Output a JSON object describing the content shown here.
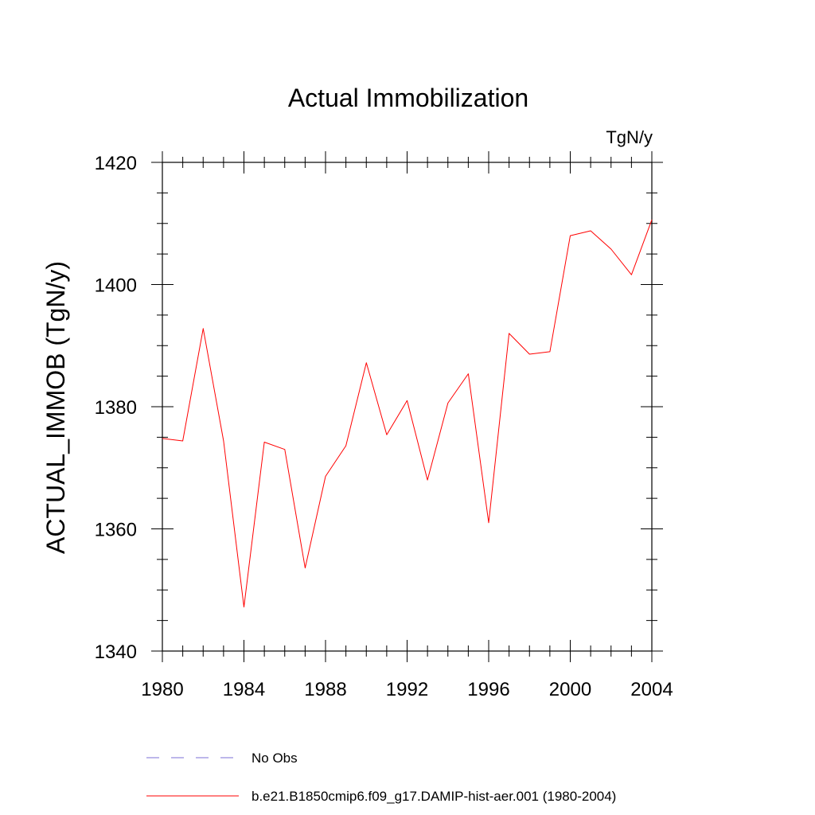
{
  "chart_data": {
    "type": "line",
    "title": "Actual Immobilization",
    "units": "TgN/y",
    "xlabel": "",
    "ylabel": "ACTUAL_IMMOB  (TgN/y)",
    "xlim": [
      1980,
      2004
    ],
    "ylim": [
      1340,
      1420
    ],
    "x_ticks": [
      1980,
      1984,
      1988,
      1992,
      1996,
      2000,
      2004
    ],
    "y_ticks": [
      1340,
      1360,
      1380,
      1400,
      1420
    ],
    "x_minor_step": 1,
    "y_minor_step": 5,
    "grid": false,
    "legend_position": "bottom",
    "legend": [
      {
        "label": "No Obs",
        "color": "#7b6fd6",
        "style": "dashed"
      },
      {
        "label": "b.e21.B1850cmip6.f09_g17.DAMIP-hist-aer.001 (1980-2004)",
        "color": "#ff0000",
        "style": "solid"
      }
    ],
    "series": [
      {
        "name": "b.e21.B1850cmip6.f09_g17.DAMIP-hist-aer.001 (1980-2004)",
        "color": "#ff0000",
        "x": [
          1980,
          1981,
          1982,
          1983,
          1984,
          1985,
          1986,
          1987,
          1988,
          1989,
          1990,
          1991,
          1992,
          1993,
          1994,
          1995,
          1996,
          1997,
          1998,
          1999,
          2000,
          2001,
          2002,
          2003,
          2004
        ],
        "y": [
          1374.8,
          1374.4,
          1392.8,
          1374.4,
          1347.2,
          1374.2,
          1373.0,
          1353.6,
          1368.6,
          1373.6,
          1387.2,
          1375.4,
          1381.0,
          1368.0,
          1380.6,
          1385.4,
          1361.0,
          1392.0,
          1388.6,
          1389.0,
          1408.0,
          1408.8,
          1405.8,
          1401.6,
          1410.6
        ]
      }
    ]
  }
}
